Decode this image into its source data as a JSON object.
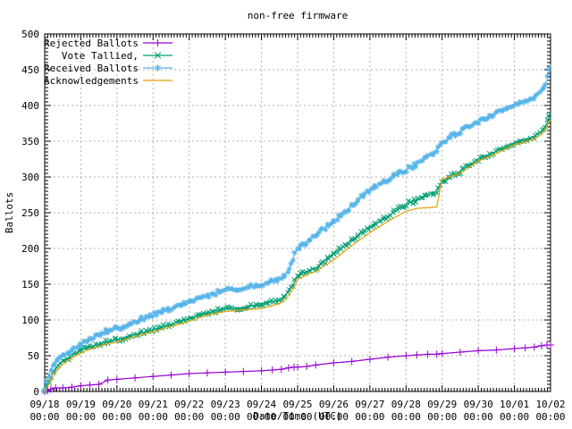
{
  "title": "non-free firmware",
  "axes": {
    "ylabel": "Ballots",
    "xlabel": "Date/Time (UTC)",
    "y_ticks": [
      0,
      50,
      100,
      150,
      200,
      250,
      300,
      350,
      400,
      450,
      500
    ],
    "x_tick_labels": [
      {
        "date": "09/18",
        "time": "00:00"
      },
      {
        "date": "09/19",
        "time": "00:00"
      },
      {
        "date": "09/20",
        "time": "00:00"
      },
      {
        "date": "09/21",
        "time": "00:00"
      },
      {
        "date": "09/22",
        "time": "00:00"
      },
      {
        "date": "09/23",
        "time": "00:00"
      },
      {
        "date": "09/24",
        "time": "00:00"
      },
      {
        "date": "09/25",
        "time": "00:00"
      },
      {
        "date": "09/26",
        "time": "00:00"
      },
      {
        "date": "09/27",
        "time": "00:00"
      },
      {
        "date": "09/28",
        "time": "00:00"
      },
      {
        "date": "09/29",
        "time": "00:00"
      },
      {
        "date": "09/30",
        "time": "00:00"
      },
      {
        "date": "10/01",
        "time": "00:00"
      },
      {
        "date": "10/02",
        "time": "00:00"
      }
    ]
  },
  "legend": {
    "position": "top-left",
    "entries": [
      {
        "label": "Rejected Ballots",
        "color": "#9400d3",
        "marker": "plus"
      },
      {
        "label": "Vote Tallied,",
        "color": "#009e73",
        "marker": "cross"
      },
      {
        "label": "Received Ballots",
        "color": "#56b4e9",
        "marker": "star"
      },
      {
        "label": "Acknowledgements",
        "color": "#e69f00",
        "marker": "none"
      }
    ]
  },
  "chart_data": {
    "type": "line",
    "title": "non-free firmware",
    "xlabel": "Date/Time (UTC)",
    "ylabel": "Ballots",
    "ylim": [
      0,
      500
    ],
    "grid": true,
    "legend_position": "top-left",
    "x_unit": "days since 09/18 00:00 UTC",
    "x_days_span": 14,
    "x": [
      0,
      0.08,
      0.17,
      0.3,
      0.5,
      0.75,
      1,
      1.25,
      1.5,
      1.75,
      2,
      2.5,
      3,
      3.5,
      4,
      4.5,
      5,
      5.5,
      6,
      6.3,
      6.55,
      6.75,
      6.9,
      7,
      7.25,
      7.5,
      8,
      8.5,
      9,
      9.5,
      10,
      10.3,
      10.6,
      10.85,
      11,
      11.5,
      12,
      12.5,
      13,
      13.3,
      13.55,
      13.75,
      13.9,
      14
    ],
    "series": [
      {
        "name": "Rejected Ballots",
        "color": "#9400d3",
        "marker": "plus",
        "band": false,
        "values": [
          0,
          1,
          3,
          5,
          5,
          6,
          8,
          9,
          10,
          16,
          17,
          19,
          21,
          23,
          25,
          26,
          27,
          28,
          29,
          30,
          31,
          33,
          34,
          34,
          35,
          37,
          40,
          42,
          45,
          48,
          50,
          51,
          52,
          52,
          53,
          55,
          57,
          58,
          60,
          61,
          62,
          64,
          65,
          65
        ]
      },
      {
        "name": "Vote Tallied,",
        "color": "#009e73",
        "marker": "cross",
        "band": true,
        "values": [
          0,
          10,
          22,
          32,
          42,
          50,
          58,
          62,
          66,
          70,
          72,
          80,
          86,
          94,
          102,
          110,
          116,
          117,
          123,
          126,
          128,
          140,
          152,
          162,
          168,
          172,
          193,
          212,
          230,
          245,
          262,
          268,
          274,
          280,
          293,
          308,
          325,
          336,
          348,
          352,
          357,
          363,
          375,
          390
        ]
      },
      {
        "name": "Received Ballots",
        "color": "#56b4e9",
        "marker": "star",
        "band": true,
        "values": [
          2,
          18,
          32,
          42,
          50,
          58,
          65,
          72,
          80,
          85,
          88,
          98,
          107,
          116,
          126,
          134,
          142,
          145,
          150,
          155,
          158,
          168,
          190,
          200,
          208,
          220,
          238,
          260,
          283,
          296,
          310,
          318,
          328,
          338,
          348,
          364,
          378,
          390,
          402,
          407,
          412,
          420,
          435,
          457
        ]
      },
      {
        "name": "Acknowledgements",
        "color": "#e69f00",
        "marker": "none",
        "band": false,
        "values": [
          0,
          6,
          16,
          27,
          38,
          47,
          54,
          59,
          63,
          67,
          69,
          77,
          83,
          91,
          98,
          107,
          112,
          114,
          116,
          120,
          124,
          134,
          146,
          157,
          163,
          168,
          184,
          204,
          222,
          238,
          252,
          256,
          257,
          258,
          297,
          305,
          322,
          333,
          345,
          349,
          353,
          360,
          370,
          380
        ]
      }
    ]
  }
}
